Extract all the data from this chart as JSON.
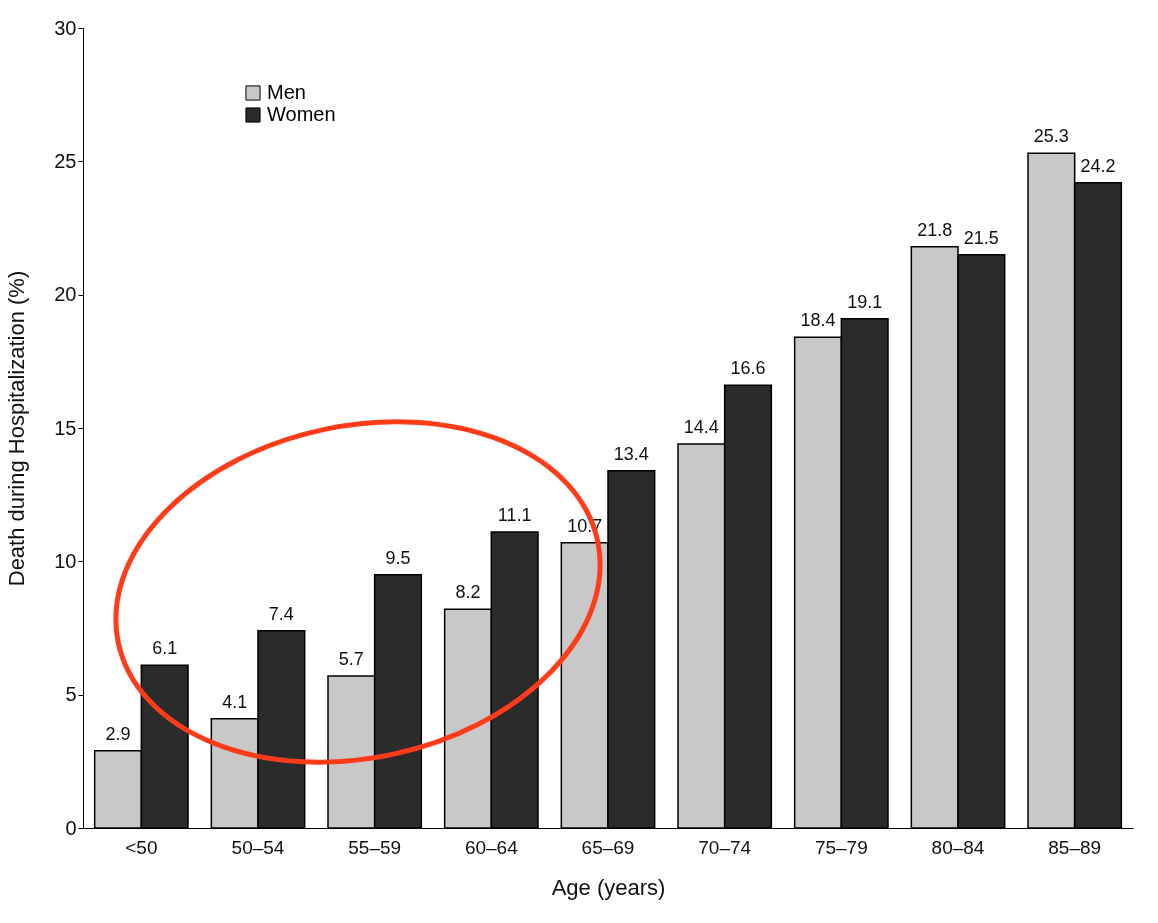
{
  "chart_data": {
    "type": "bar",
    "xlabel": "Age (years)",
    "ylabel": "Death during Hospitalization (%)",
    "categories": [
      "<50",
      "50–54",
      "55–59",
      "60–64",
      "65–69",
      "70–74",
      "75–79",
      "80–84",
      "85–89"
    ],
    "series": [
      {
        "name": "Men",
        "color": "#c8c8c8",
        "values": [
          2.9,
          4.1,
          5.7,
          8.2,
          10.7,
          14.4,
          18.4,
          21.8,
          25.3
        ]
      },
      {
        "name": "Women",
        "color": "#2b2b2b",
        "values": [
          6.1,
          7.4,
          9.5,
          11.1,
          13.4,
          16.6,
          19.1,
          21.5,
          24.2
        ]
      }
    ],
    "ylim": [
      0,
      30
    ],
    "yticks": [
      0,
      5,
      10,
      15,
      20,
      25,
      30
    ],
    "grid": false,
    "legend": "top left",
    "data_labels": true
  }
}
